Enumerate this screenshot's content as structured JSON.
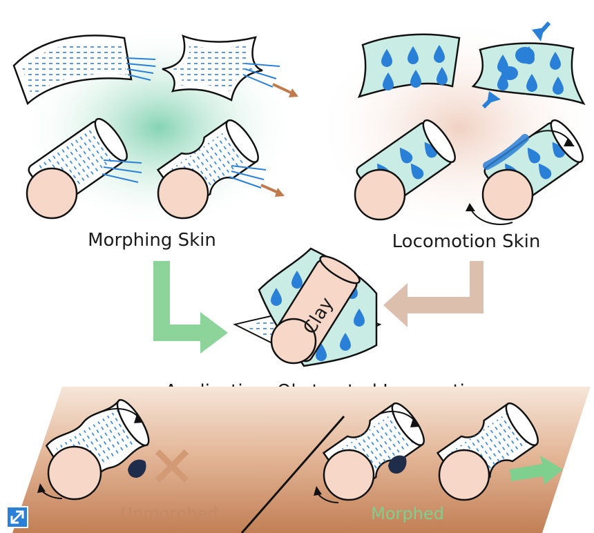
{
  "labels": {
    "morphing_skin": "Morphing Skin",
    "locomotion_skin": "Locomotion Skin",
    "clay": "Clay",
    "application": "Application: Obstructed Locomotion",
    "unmorphed": "Unmorphed",
    "morphed": "Morphed"
  },
  "colors": {
    "blue": "#2a7fd6",
    "clay_fill": "#f6d7c8",
    "teal_sheet": "#c9ece4",
    "green_arrow": "#7fcf8e",
    "tan_arrow": "#d9b8a4",
    "orange_cross": "#d39b75",
    "ground_dark": "#c98a60",
    "ground_light": "#f4e1d2"
  },
  "icons": {
    "expand": "expand-arrow-icon"
  }
}
